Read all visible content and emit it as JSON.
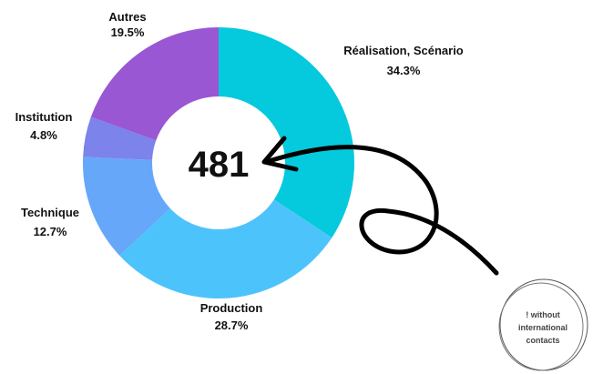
{
  "chart_data": {
    "type": "pie",
    "donut": true,
    "center_label": "481",
    "slices": [
      {
        "name": "Réalisation, Scénario",
        "value": 34.3,
        "label": "34.3%",
        "color": "#05c9dc"
      },
      {
        "name": "Production",
        "value": 28.7,
        "label": "28.7%",
        "color": "#4cc3fb"
      },
      {
        "name": "Technique",
        "value": 12.7,
        "label": "12.7%",
        "color": "#66a7fa"
      },
      {
        "name": "Institution",
        "value": 4.8,
        "label": "4.8%",
        "color": "#7c83ea"
      },
      {
        "name": "Autres",
        "value": 19.5,
        "label": "19.5%",
        "color": "#9a57d3"
      }
    ]
  },
  "annotation": {
    "badge_lines": [
      "! without",
      "international",
      "contacts"
    ]
  }
}
